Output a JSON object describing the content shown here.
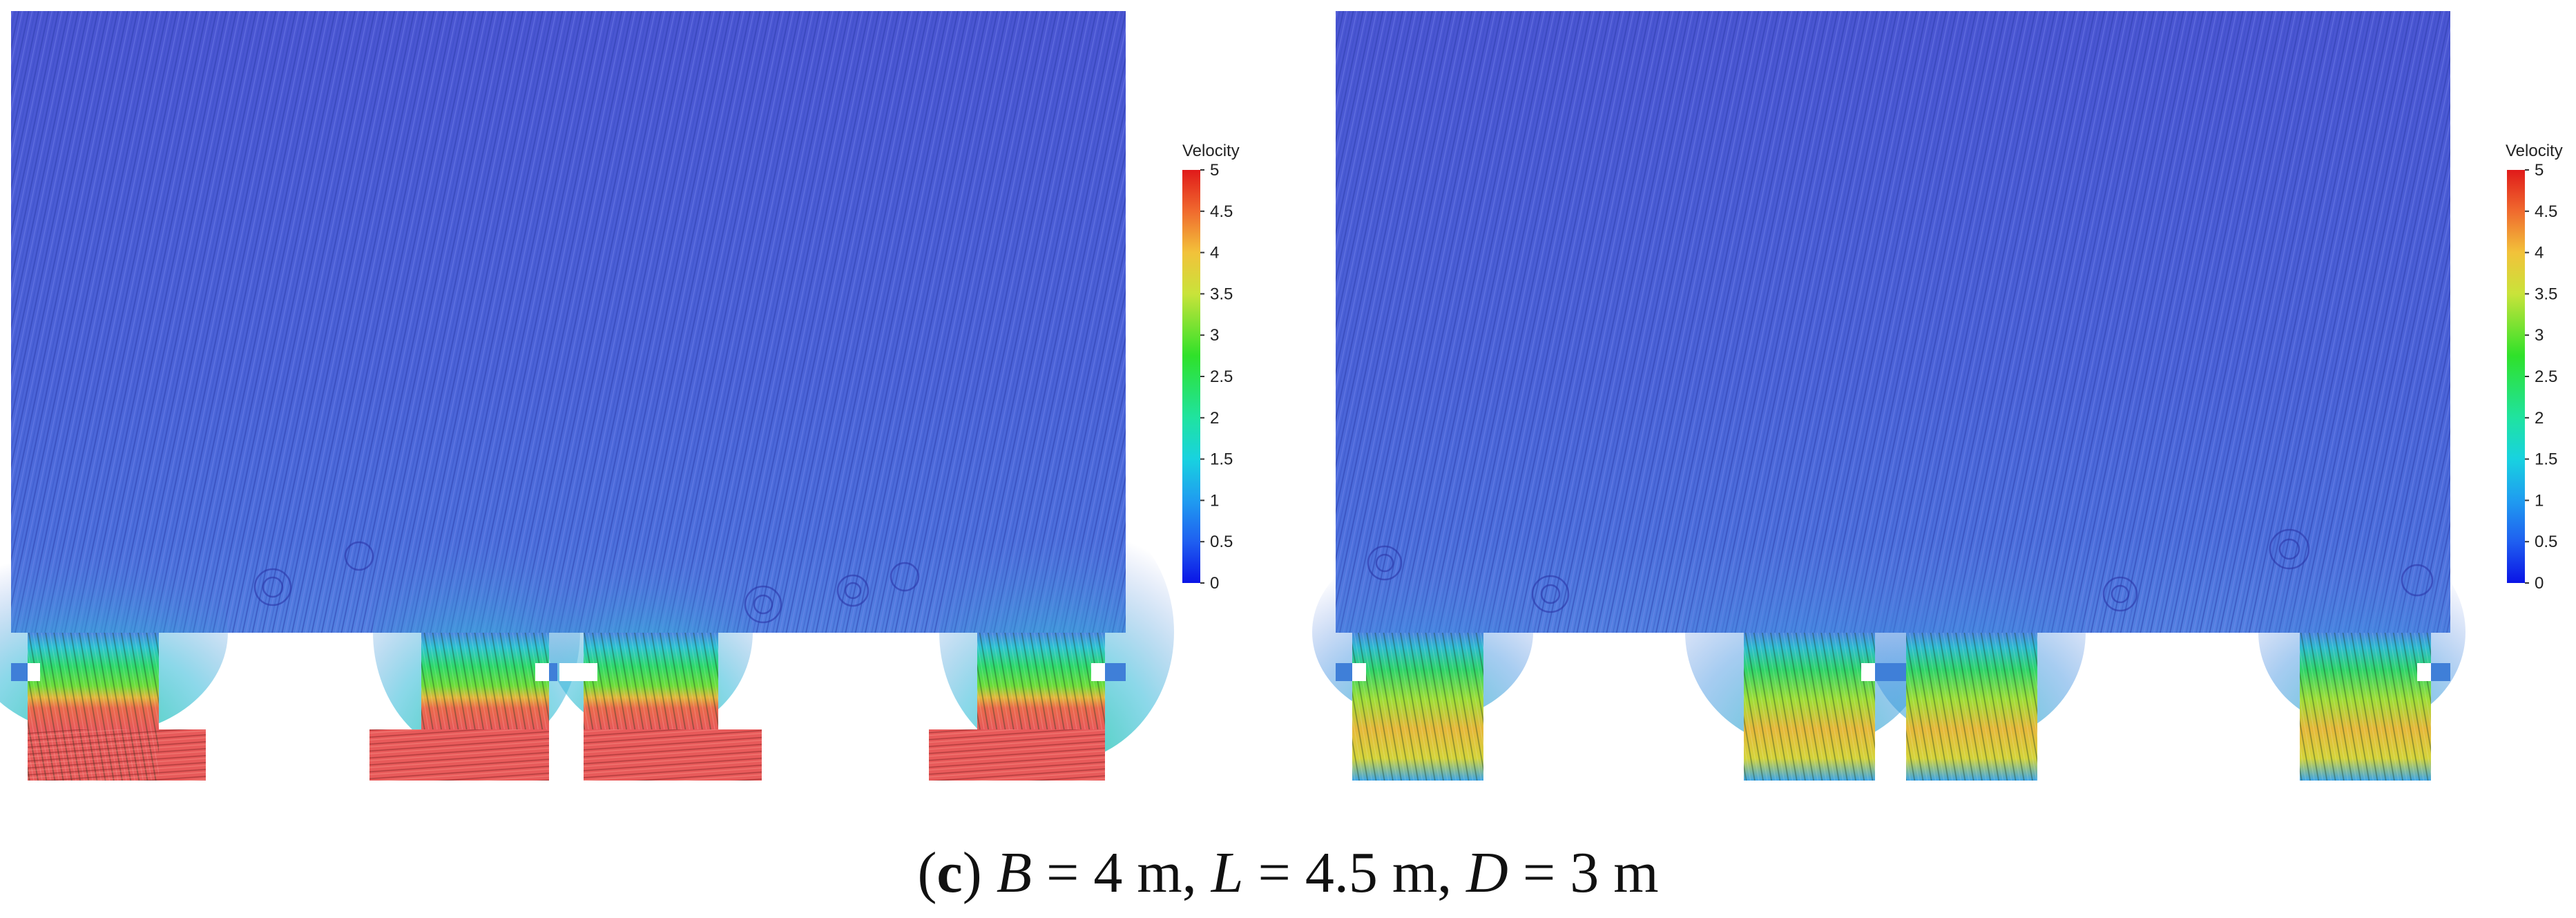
{
  "panels": [
    {
      "name": "left",
      "colorbar": {
        "title": "Velocity",
        "ticks": [
          "0",
          "0.5",
          "1",
          "1.5",
          "2",
          "2.5",
          "3",
          "3.5",
          "4",
          "4.5",
          "5"
        ]
      }
    },
    {
      "name": "right",
      "colorbar": {
        "title": "Velocity",
        "ticks": [
          "0",
          "0.5",
          "1",
          "1.5",
          "2",
          "2.5",
          "3",
          "3.5",
          "4",
          "4.5",
          "5"
        ]
      }
    }
  ],
  "caption": {
    "label": "c",
    "open": "(",
    "close": ")",
    "var_b": "B",
    "val_b": " = 4 m, ",
    "var_l": "L",
    "val_l": " = 4.5 m, ",
    "var_d": "D",
    "val_d": " = 3 m"
  },
  "colors": {
    "domain_blue": "#4b5fd6",
    "jet_red": "#e85a5a",
    "colormap": [
      "#0a14e6",
      "#1f7af0",
      "#18d2e0",
      "#22e36a",
      "#2fe12a",
      "#c9e33a",
      "#f2c23a",
      "#f08a32",
      "#e8462e",
      "#e01a1a"
    ]
  }
}
